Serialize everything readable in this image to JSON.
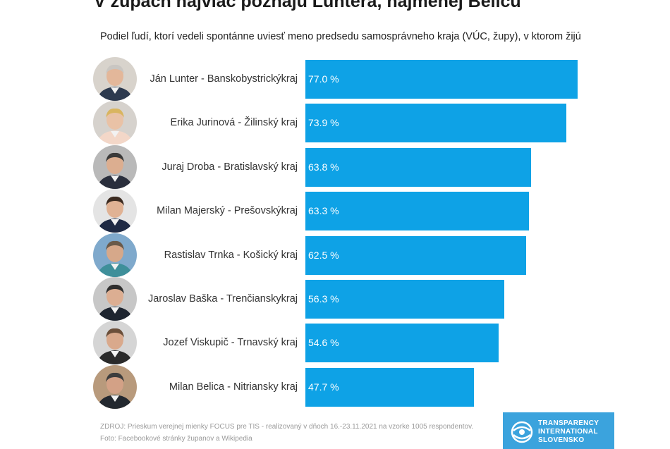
{
  "chart_data": {
    "type": "bar",
    "orientation": "horizontal",
    "title": "V župách najviac poznajú Luntera, najmenej Belicu",
    "subtitle": "Podiel ľudí, ktorí vedeli spontánne uviesť meno predsedu samosprávneho kraja (VÚC, župy), v ktorom žijú",
    "categories": [
      "Ján Lunter - Banskobystrický kraj",
      "Erika Jurinová - Žilinský kraj",
      "Juraj Droba - Bratislavský kraj",
      "Milan Majerský - Prešovský kraj",
      "Rastislav Trnka - Košický kraj",
      "Jaroslav Baška - Trenčiansky kraj",
      "Jozef Viskupič - Trnavský kraj",
      "Milan Belica - Nitriansky kraj"
    ],
    "values": [
      77.0,
      73.9,
      63.8,
      63.3,
      62.5,
      56.3,
      54.6,
      47.7
    ],
    "value_labels": [
      "77.0 %",
      "73.9 %",
      "63.8 %",
      "63.3 %",
      "62.5 %",
      "56.3 %",
      "54.6 %",
      "47.7 %"
    ],
    "xlim": [
      0,
      100
    ],
    "bar_color": "#0ea2e6",
    "grid": false,
    "legend": "none"
  },
  "rows": [
    {
      "line1": "Ján Lunter - Banskobystrický",
      "line2": "kraj"
    },
    {
      "line1": "Erika Jurinová - Žilinský kraj",
      "line2": ""
    },
    {
      "line1": "Juraj Droba - Bratislavský kraj",
      "line2": ""
    },
    {
      "line1": "Milan Majerský - Prešovský",
      "line2": "kraj"
    },
    {
      "line1": "Rastislav Trnka - Košický kraj",
      "line2": ""
    },
    {
      "line1": "Jaroslav Baška - Trenčiansky",
      "line2": "kraj"
    },
    {
      "line1": "Jozef Viskupič - Trnavský kraj",
      "line2": ""
    },
    {
      "line1": "Milan Belica - Nitriansky kraj",
      "line2": ""
    }
  ],
  "avatars": [
    {
      "icon": "person-photo",
      "bg": "#d8d3cc",
      "hair": "#c9c6c2",
      "suit": "#2d3a4f",
      "skin": "#e3b79a"
    },
    {
      "icon": "person-photo",
      "bg": "#d6d2cd",
      "hair": "#d9b560",
      "suit": "#f3d7c8",
      "skin": "#e9c2a6"
    },
    {
      "icon": "person-photo",
      "bg": "#b9b9b9",
      "hair": "#3a3a3a",
      "suit": "#2a2f3d",
      "skin": "#dcae90"
    },
    {
      "icon": "person-photo",
      "bg": "#e4e4e4",
      "hair": "#3b2a20",
      "suit": "#1f2a44",
      "skin": "#e0b294"
    },
    {
      "icon": "person-photo",
      "bg": "#7fa9cc",
      "hair": "#6a5a4a",
      "suit": "#3e8f9a",
      "skin": "#d6a88a"
    },
    {
      "icon": "person-photo",
      "bg": "#c7c7c7",
      "hair": "#2f2f2f",
      "suit": "#1e2530",
      "skin": "#dcae92"
    },
    {
      "icon": "person-photo",
      "bg": "#d5d5d5",
      "hair": "#6b4f3a",
      "suit": "#2a2a2a",
      "skin": "#d9a98c"
    },
    {
      "icon": "person-photo",
      "bg": "#b89a7c",
      "hair": "#3d3d3d",
      "suit": "#23282f",
      "skin": "#d3a186"
    }
  ],
  "footer": {
    "source": "ZDROJ: Prieskum verejnej mienky FOCUS pre TIS - realizovaný v dňoch 16.-23.11.2021 na vzorke 1005 respondentov.",
    "photo": "Foto: Facebookové stránky županov a Wikipedia"
  },
  "logo": {
    "icon": "transparency-globe-icon",
    "line1": "TRANSPARENCY",
    "line2": "INTERNATIONAL",
    "line3": "SLOVENSKO",
    "bg": "#3ba3dd"
  }
}
